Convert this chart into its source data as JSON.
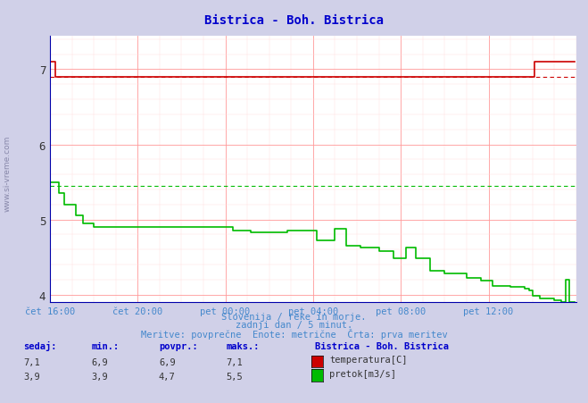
{
  "title": "Bistrica - Boh. Bistrica",
  "title_color": "#0000cc",
  "bg_color": "#d0d0e8",
  "plot_bg_color": "#ffffff",
  "grid_color_major": "#ff9999",
  "grid_color_minor": "#ffdddd",
  "xlim": [
    0,
    288
  ],
  "ylim": [
    3.9,
    7.45
  ],
  "yticks": [
    4,
    5,
    6,
    7
  ],
  "xlabel_color": "#4488cc",
  "xtick_labels": [
    "čet 16:00",
    "čet 20:00",
    "pet 00:00",
    "pet 04:00",
    "pet 08:00",
    "pet 12:00"
  ],
  "xtick_positions": [
    0,
    48,
    96,
    144,
    192,
    240
  ],
  "temp_color": "#cc0000",
  "flow_color": "#00bb00",
  "avg_temp_value": 6.9,
  "avg_flow_value": 5.45,
  "sidebar_text": "www.si-vreme.com",
  "footer_line1": "Slovenija / reke in morje.",
  "footer_line2": "zadnji dan / 5 minut.",
  "footer_line3": "Meritve: povprečne  Enote: metrične  Črta: prva meritev",
  "legend_title": "Bistrica - Boh. Bistrica",
  "stats_headers": [
    "sedaj:",
    "min.:",
    "povpr.:",
    "maks.:"
  ],
  "stats_temp": [
    "7,1",
    "6,9",
    "6,9",
    "7,1"
  ],
  "stats_flow": [
    "3,9",
    "3,9",
    "4,7",
    "5,5"
  ],
  "temp_label": "temperatura[C]",
  "flow_label": "pretok[m3/s]",
  "temp_color_sq": "#cc0000",
  "flow_color_sq": "#00bb00",
  "temp_data_x": [
    0,
    2,
    3,
    12,
    14,
    256,
    258,
    264,
    265,
    287
  ],
  "temp_data_y": [
    7.1,
    7.1,
    6.9,
    6.9,
    6.9,
    6.9,
    6.9,
    6.9,
    7.1,
    7.1
  ],
  "flow_data_x": [
    0,
    5,
    8,
    14,
    18,
    24,
    96,
    100,
    110,
    130,
    140,
    144,
    146,
    152,
    156,
    160,
    162,
    168,
    170,
    176,
    180,
    186,
    188,
    192,
    195,
    198,
    200,
    204,
    208,
    212,
    216,
    220,
    228,
    232,
    236,
    240,
    242,
    248,
    252,
    256,
    260,
    262,
    264,
    268,
    272,
    276,
    280,
    282,
    283,
    284,
    285,
    287
  ],
  "flow_data_y": [
    5.5,
    5.35,
    5.2,
    5.05,
    4.95,
    4.9,
    4.9,
    4.85,
    4.83,
    4.85,
    4.85,
    4.85,
    4.72,
    4.72,
    4.88,
    4.88,
    4.65,
    4.65,
    4.62,
    4.62,
    4.58,
    4.58,
    4.48,
    4.48,
    4.62,
    4.62,
    4.48,
    4.48,
    4.32,
    4.32,
    4.28,
    4.28,
    4.22,
    4.22,
    4.18,
    4.18,
    4.12,
    4.12,
    4.1,
    4.1,
    4.08,
    4.05,
    3.98,
    3.95,
    3.95,
    3.92,
    3.9,
    4.2,
    4.2,
    3.9,
    3.9,
    3.9
  ]
}
